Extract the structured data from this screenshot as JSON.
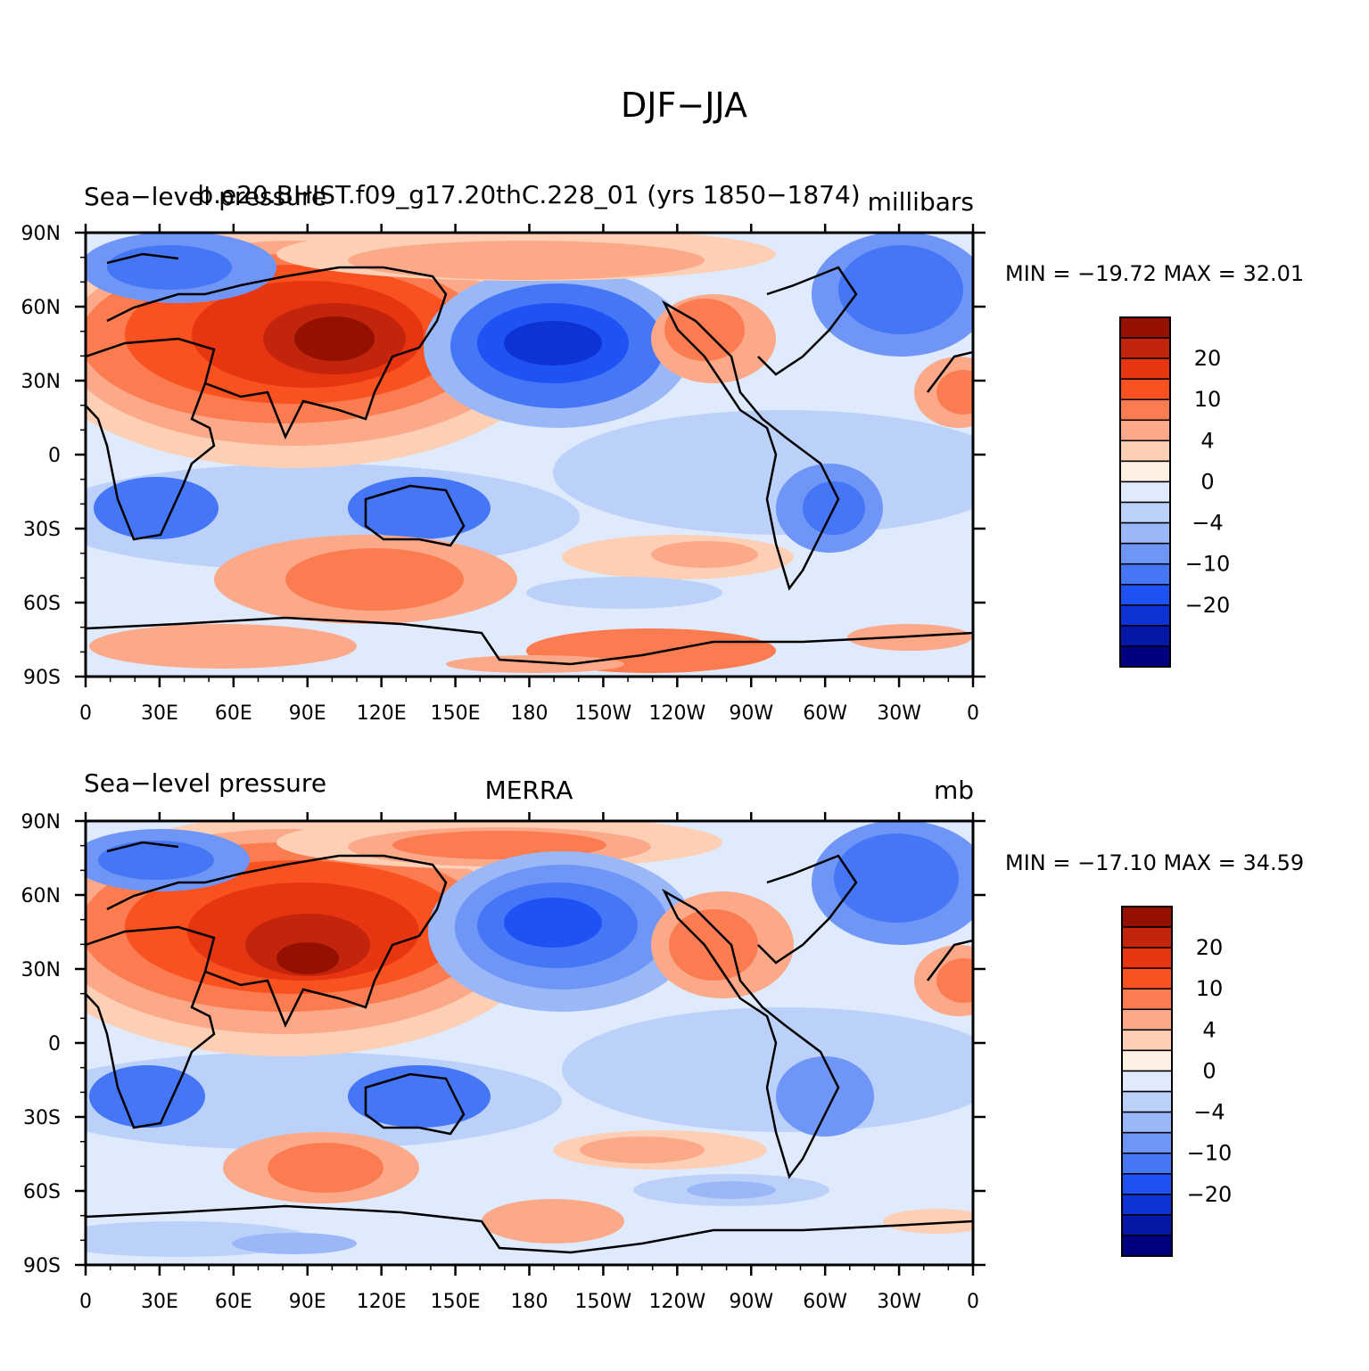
{
  "title": "DJF−JJA",
  "colorbar": {
    "colors": [
      "#000080",
      "#0418a8",
      "#0e32d4",
      "#1f52f5",
      "#4476f5",
      "#6f96f7",
      "#9ab7f8",
      "#bcd1fa",
      "#dfeafd",
      "#fff0e4",
      "#fdd0b5",
      "#fca98a",
      "#fb7c50",
      "#f9511f",
      "#e73512",
      "#c2250b",
      "#941000"
    ],
    "labels": [
      "20",
      "10",
      "4",
      "0",
      "−4",
      "−10",
      "−20"
    ]
  },
  "x_ticks": [
    "0",
    "30E",
    "60E",
    "90E",
    "120E",
    "150E",
    "180",
    "150W",
    "120W",
    "90W",
    "60W",
    "30W",
    "0"
  ],
  "y_ticks": [
    "90N",
    "60N",
    "30N",
    "0",
    "30S",
    "60S",
    "90S"
  ],
  "panels": [
    {
      "left_title": "Sea−level pressure",
      "center_title": "b.e20.BHIST.f09_g17.20thC.228_01 (yrs 1850−1874)",
      "right_title": "millibars",
      "minmax": "MIN = −19.72  MAX =   32.01"
    },
    {
      "left_title": "Sea−level pressure",
      "center_title": "MERRA",
      "right_title": "mb",
      "minmax": "MIN = −17.10  MAX =   34.59"
    }
  ]
}
